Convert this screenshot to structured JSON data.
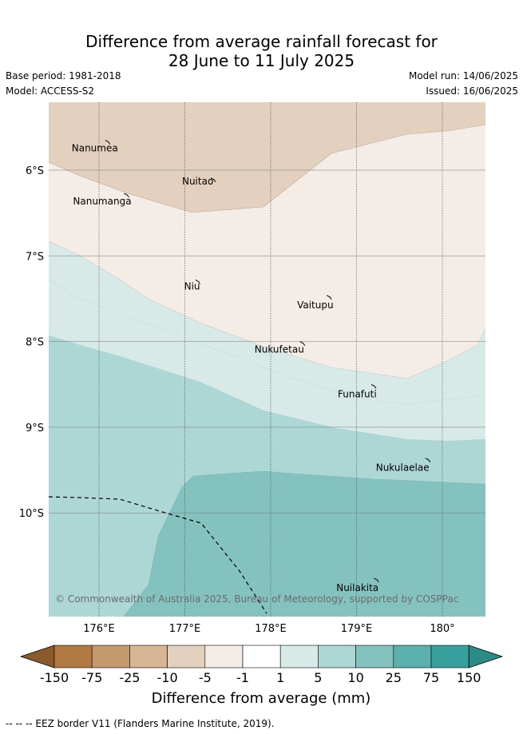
{
  "title": {
    "line1": "Difference from average rainfall forecast for",
    "line2": "28 June to 11 July 2025"
  },
  "info": {
    "base_period": "Base period: 1981-2018",
    "model": "Model: ACCESS-S2",
    "model_run": "Model run: 14/06/2025",
    "issued": "Issued: 16/06/2025"
  },
  "map": {
    "lon_ticks": [
      "176°E",
      "177°E",
      "178°E",
      "179°E",
      "180°"
    ],
    "lat_ticks": [
      "6°S",
      "7°S",
      "8°S",
      "9°S",
      "10°S"
    ],
    "lon_range": [
      175.4,
      180.5
    ],
    "lat_range": [
      -5.2,
      -11.2
    ],
    "places": [
      {
        "name": "Nanumea",
        "lon": 176.1,
        "lat": -5.67
      },
      {
        "name": "Nuitao",
        "lon": 177.33,
        "lat": -6.11
      },
      {
        "name": "Nanumanga",
        "lon": 176.32,
        "lat": -6.29
      },
      {
        "name": "Niu",
        "lon": 177.15,
        "lat": -7.3
      },
      {
        "name": "Vaitupu",
        "lon": 178.68,
        "lat": -7.48
      },
      {
        "name": "Nukufetau",
        "lon": 178.37,
        "lat": -8.02
      },
      {
        "name": "Funafuti",
        "lon": 179.2,
        "lat": -8.52
      },
      {
        "name": "Nukulaelae",
        "lon": 179.83,
        "lat": -9.38
      },
      {
        "name": "Nuilakita",
        "lon": 179.23,
        "lat": -10.78
      }
    ],
    "copyright": "© Commonwealth of Australia 2025, Bureau of Meteorology, supported by COSPPac"
  },
  "colorbar": {
    "ticks": [
      "-150",
      "-75",
      "-25",
      "-10",
      "-5",
      "-1",
      "1",
      "5",
      "10",
      "25",
      "75",
      "150"
    ],
    "colors": [
      "#8b5a2b",
      "#b07a42",
      "#c49a6c",
      "#d6b592",
      "#e4d0be",
      "#f4ece7",
      "#ffffff",
      "#d7eae8",
      "#acd7d5",
      "#84c2c0",
      "#5ab0ad",
      "#36a19c",
      "#2c8a87"
    ],
    "label": "Difference from average (mm)"
  },
  "legend": {
    "eez": "--  --  -- EEZ border V11 (Flanders Marine Institute, 2019)."
  }
}
